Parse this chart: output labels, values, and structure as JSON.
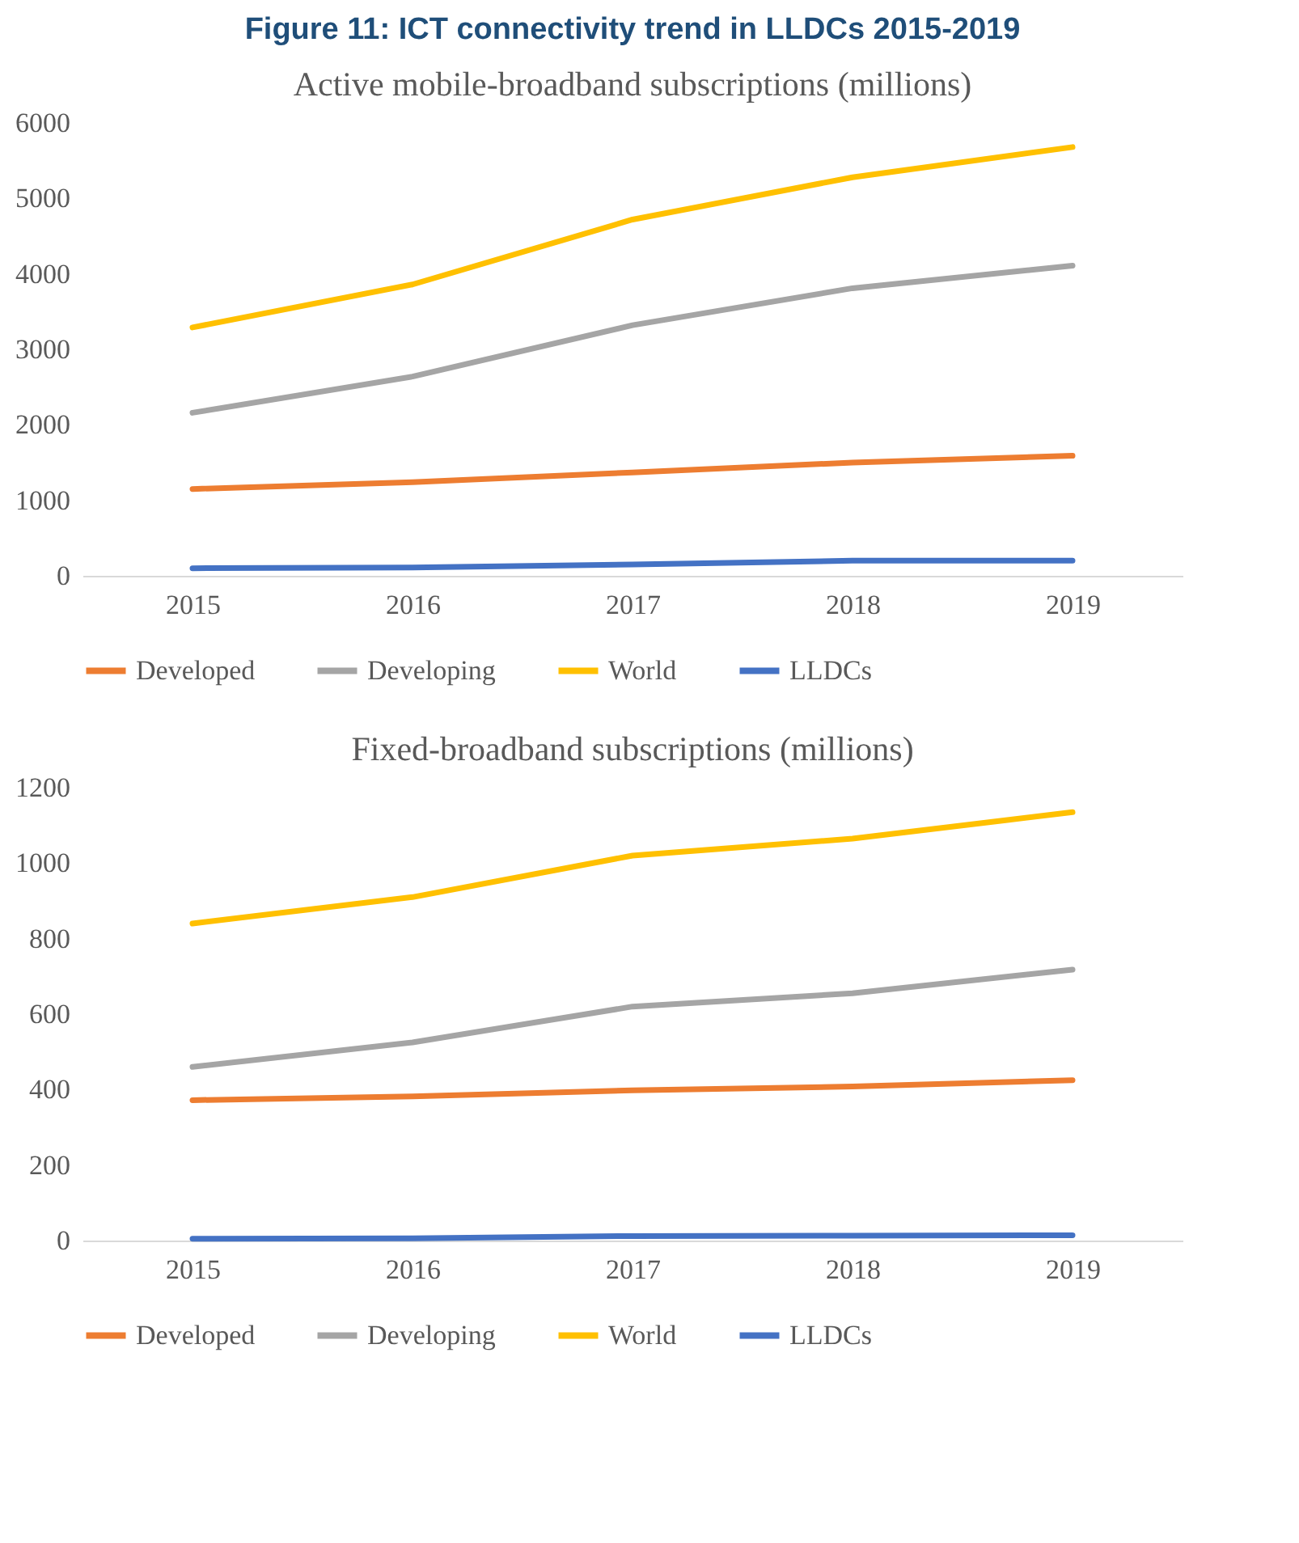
{
  "chart_data": [
    {
      "type": "line",
      "title": "Figure 11: ICT connectivity trend in LLDCs 2015-2019",
      "subtitle": "Active mobile-broadband subscriptions (millions)",
      "categories": [
        "2015",
        "2016",
        "2017",
        "2018",
        "2019"
      ],
      "series": [
        {
          "name": "Developed",
          "color": "#ed7d31",
          "values": [
            1150,
            1240,
            1370,
            1500,
            1590
          ]
        },
        {
          "name": "Developing",
          "color": "#a5a5a5",
          "values": [
            2160,
            2640,
            3320,
            3810,
            4110
          ]
        },
        {
          "name": "World",
          "color": "#ffc000",
          "values": [
            3290,
            3860,
            4720,
            5280,
            5680
          ]
        },
        {
          "name": "LLDCs",
          "color": "#4472c4",
          "values": [
            100,
            110,
            150,
            200,
            200
          ]
        }
      ],
      "ylim": [
        0,
        6000
      ],
      "yticks": [
        0,
        1000,
        2000,
        3000,
        4000,
        5000,
        6000
      ],
      "grid": false,
      "legend": "bottom",
      "marker": "none"
    },
    {
      "type": "line",
      "title": "Fixed-broadband subscriptions (millions)",
      "categories": [
        "2015",
        "2016",
        "2017",
        "2018",
        "2019"
      ],
      "series": [
        {
          "name": "Developed",
          "color": "#ed7d31",
          "values": [
            372,
            382,
            398,
            408,
            425
          ]
        },
        {
          "name": "Developing",
          "color": "#a5a5a5",
          "values": [
            460,
            525,
            620,
            655,
            718
          ]
        },
        {
          "name": "World",
          "color": "#ffc000",
          "values": [
            840,
            910,
            1020,
            1065,
            1135
          ]
        },
        {
          "name": "LLDCs",
          "color": "#4472c4",
          "values": [
            5,
            6,
            12,
            13,
            14
          ]
        }
      ],
      "ylim": [
        0,
        1200
      ],
      "yticks": [
        0,
        200,
        400,
        600,
        800,
        1000,
        1200
      ],
      "grid": false,
      "legend": "bottom",
      "marker": "none"
    }
  ]
}
